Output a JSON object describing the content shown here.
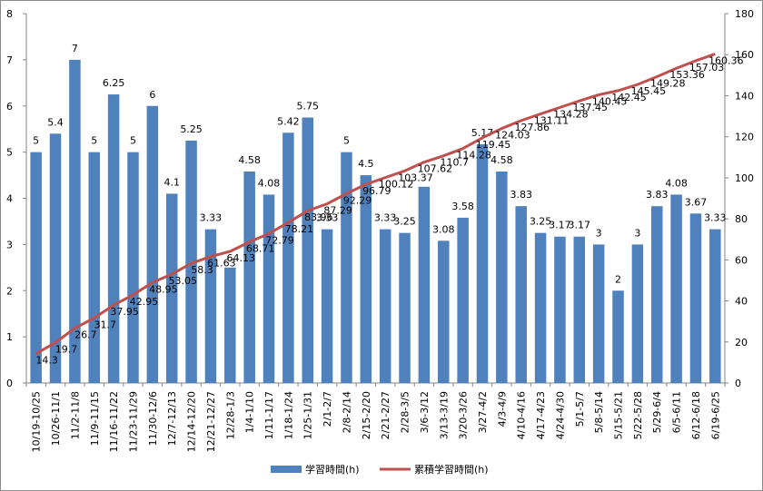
{
  "chart_data": {
    "type": "bar",
    "categories": [
      "10/19-10/25",
      "10/26-11/1",
      "11/2-11/8",
      "11/9-11/15",
      "11/16-11/22",
      "11/23-11/29",
      "11/30-12/6",
      "12/7-12/13",
      "12/14-12/20",
      "12/21-12/27",
      "12/28-1/3",
      "1/4-1/10",
      "1/11-1/17",
      "1/18-1/24",
      "1/25-1/31",
      "2/1-2/7",
      "2/8-2/14",
      "2/15-2/20",
      "2/21-2/27",
      "2/28-3/5",
      "3/6-3/12",
      "3/13-3/19",
      "3/20-3/26",
      "3/27-4/2",
      "4/3-4/9",
      "4/10-4/16",
      "4/17-4/23",
      "4/24-4/30",
      "5/1-5/7",
      "5/8-5/14",
      "5/15-5/21",
      "5/22-5/28",
      "5/29-6/4",
      "6/5-6/11",
      "6/12-6/18",
      "6/19-6/25"
    ],
    "series": [
      {
        "name": "学習時間(h)",
        "type": "bar",
        "axis": "left",
        "color": "#4f81bd",
        "values": [
          5,
          5.4,
          7,
          5,
          6.25,
          5,
          6,
          4.1,
          5.25,
          3.33,
          2.5,
          4.58,
          4.08,
          5.42,
          5.75,
          3.33,
          5,
          4.5,
          3.33,
          3.25,
          4.25,
          3.08,
          3.58,
          5.17,
          4.58,
          3.83,
          3.25,
          3.17,
          3.17,
          3,
          2,
          3,
          3.83,
          4.08,
          3.67,
          3.33
        ],
        "labels": [
          "5",
          "5.4",
          "7",
          "5",
          "6.25",
          "5",
          "6",
          "4.1",
          "5.25",
          "3.33",
          "",
          "4.58",
          "4.08",
          "5.42",
          "5.75",
          "3.33",
          "5",
          "4.5",
          "3.33",
          "3.25",
          "",
          "3.08",
          "3.58",
          "5.17",
          "4.58",
          "3.83",
          "3.25",
          "3.17",
          "3.17",
          "3",
          "2",
          "3",
          "3.83",
          "4.08",
          "3.67",
          "3.33"
        ]
      },
      {
        "name": "累積学習時間(h)",
        "type": "line",
        "axis": "right",
        "color": "#c0504d",
        "values": [
          14.3,
          19.7,
          26.7,
          31.7,
          37.95,
          42.95,
          48.95,
          53.05,
          58.3,
          61.63,
          64.13,
          68.71,
          72.79,
          78.21,
          83.96,
          87.29,
          92.29,
          96.79,
          100.12,
          103.37,
          107.62,
          110.7,
          114.28,
          119.45,
          124.03,
          127.86,
          131.11,
          134.28,
          137.45,
          140.45,
          142.45,
          145.45,
          149.28,
          153.36,
          157.03,
          160.36
        ],
        "labels": [
          "14.3",
          "19.7",
          "26.7",
          "31.7",
          "37.95",
          "42.95",
          "48.95",
          "53.05",
          "58.3",
          "61.63",
          "64.13",
          "68.71",
          "72.79",
          "78.21",
          "83.96",
          "87.29",
          "92.29",
          "96.79",
          "100.12",
          "103.37",
          "107.62",
          "110.7",
          "114.28",
          "119.45",
          "124.03",
          "127.86",
          "131.11",
          "134.28",
          "137.45",
          "140.45",
          "142.45",
          "145.45",
          "149.28",
          "153.36",
          "157.03",
          "160.36"
        ]
      }
    ],
    "y_left": {
      "range": [
        0,
        8
      ],
      "ticks": [
        "0",
        "1",
        "2",
        "3",
        "4",
        "5",
        "6",
        "7",
        "8"
      ]
    },
    "y_right": {
      "range": [
        0,
        180
      ],
      "ticks": [
        "0",
        "20",
        "40",
        "60",
        "80",
        "100",
        "120",
        "140",
        "160",
        "180"
      ]
    },
    "grid": false,
    "legend": {
      "position": "bottom"
    }
  }
}
